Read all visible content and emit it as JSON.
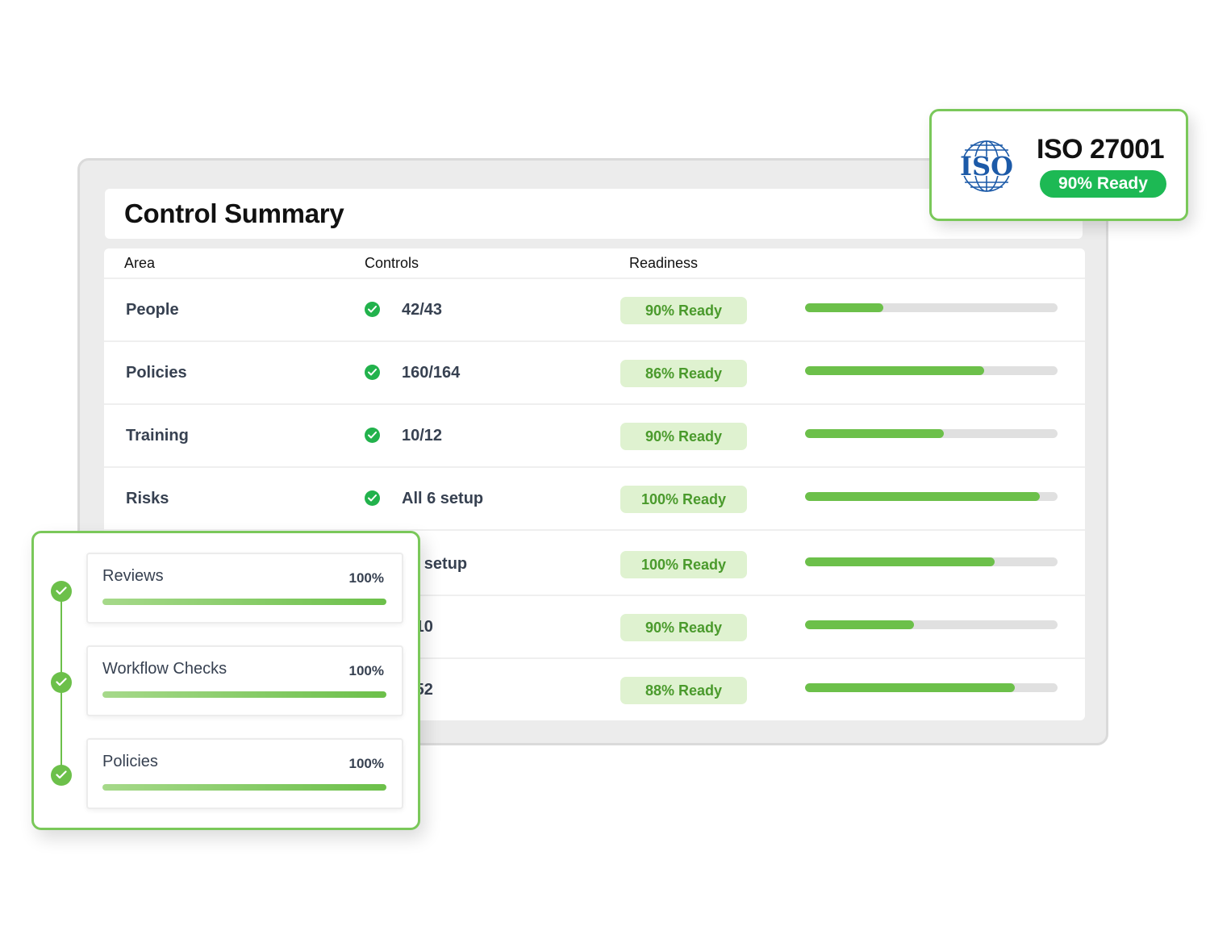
{
  "summary": {
    "title": "Control Summary",
    "columns": {
      "area": "Area",
      "controls": "Controls",
      "readiness": "Readiness"
    },
    "rows": [
      {
        "area": "People",
        "controls": "42/43",
        "readiness": "90% Ready",
        "progress": 0.31
      },
      {
        "area": "Policies",
        "controls": "160/164",
        "readiness": "86% Ready",
        "progress": 0.71
      },
      {
        "area": "Training",
        "controls": "10/12",
        "readiness": "90% Ready",
        "progress": 0.55
      },
      {
        "area": "Risks",
        "controls": "All 6 setup",
        "readiness": "100% Ready",
        "progress": 0.93
      },
      {
        "area": "",
        "controls": "18 setup",
        "readiness": "100% Ready",
        "progress": 0.75
      },
      {
        "area": "",
        "controls": "3/10",
        "readiness": "90% Ready",
        "progress": 0.43
      },
      {
        "area": "",
        "controls": "3/52",
        "readiness": "88% Ready",
        "progress": 0.83
      }
    ]
  },
  "iso": {
    "logo_text": "ISO",
    "title": "ISO 27001",
    "status": "90% Ready"
  },
  "checklist": {
    "items": [
      {
        "label": "Reviews",
        "percent": "100%",
        "progress": 1.0
      },
      {
        "label": "Workflow Checks",
        "percent": "100%",
        "progress": 1.0
      },
      {
        "label": "Policies",
        "percent": "100%",
        "progress": 1.0
      }
    ]
  },
  "colors": {
    "accent_green": "#6cc04a",
    "badge_green": "#1db954",
    "pill_bg": "#dff2d0",
    "iso_blue": "#1c5aa8"
  },
  "icons": {
    "row_status": "check-circle-icon",
    "step_status": "check-circle-icon",
    "iso_logo": "iso-globe-logo"
  }
}
